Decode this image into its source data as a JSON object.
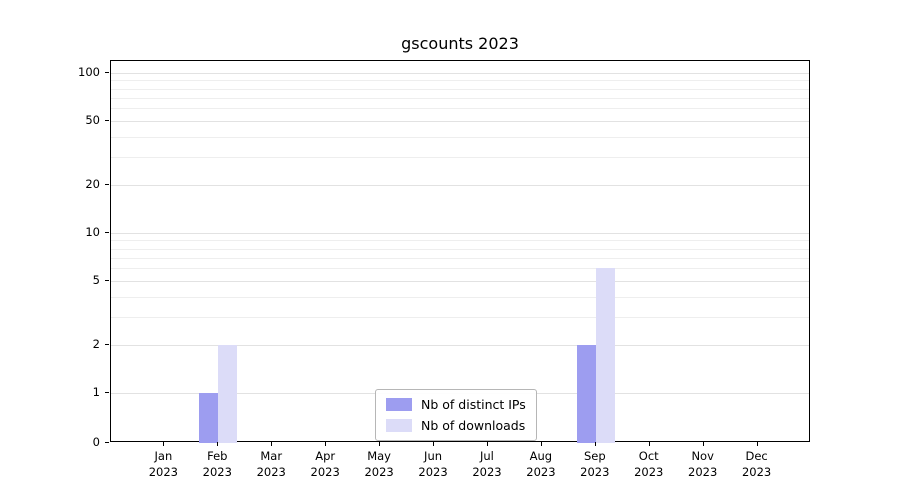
{
  "chart_data": {
    "type": "bar",
    "title": "gscounts 2023",
    "categories": [
      "Jan",
      "Feb",
      "Mar",
      "Apr",
      "May",
      "Jun",
      "Jul",
      "Aug",
      "Sep",
      "Oct",
      "Nov",
      "Dec"
    ],
    "category_year": "2023",
    "series": [
      {
        "name": "Nb of distinct IPs",
        "color": "#9d9df0",
        "values": [
          0,
          1,
          0,
          0,
          0,
          0,
          0,
          0,
          2,
          0,
          0,
          0
        ]
      },
      {
        "name": "Nb of downloads",
        "color": "#dcdcf8",
        "values": [
          0,
          2,
          0,
          0,
          0,
          0,
          0,
          0,
          6,
          0,
          0,
          0
        ]
      }
    ],
    "yaxis": {
      "scale": "symlog",
      "ticks": [
        0,
        1,
        2,
        5,
        10,
        20,
        50,
        100
      ],
      "minor_ticks": [
        3,
        4,
        6,
        7,
        8,
        9,
        30,
        40,
        60,
        70,
        80,
        90
      ],
      "ylim": [
        0,
        119
      ]
    },
    "legend": {
      "position": "lower center",
      "entries": [
        "Nb of distinct IPs",
        "Nb of downloads"
      ]
    },
    "grid": "horizontal",
    "background": "#ffffff"
  }
}
